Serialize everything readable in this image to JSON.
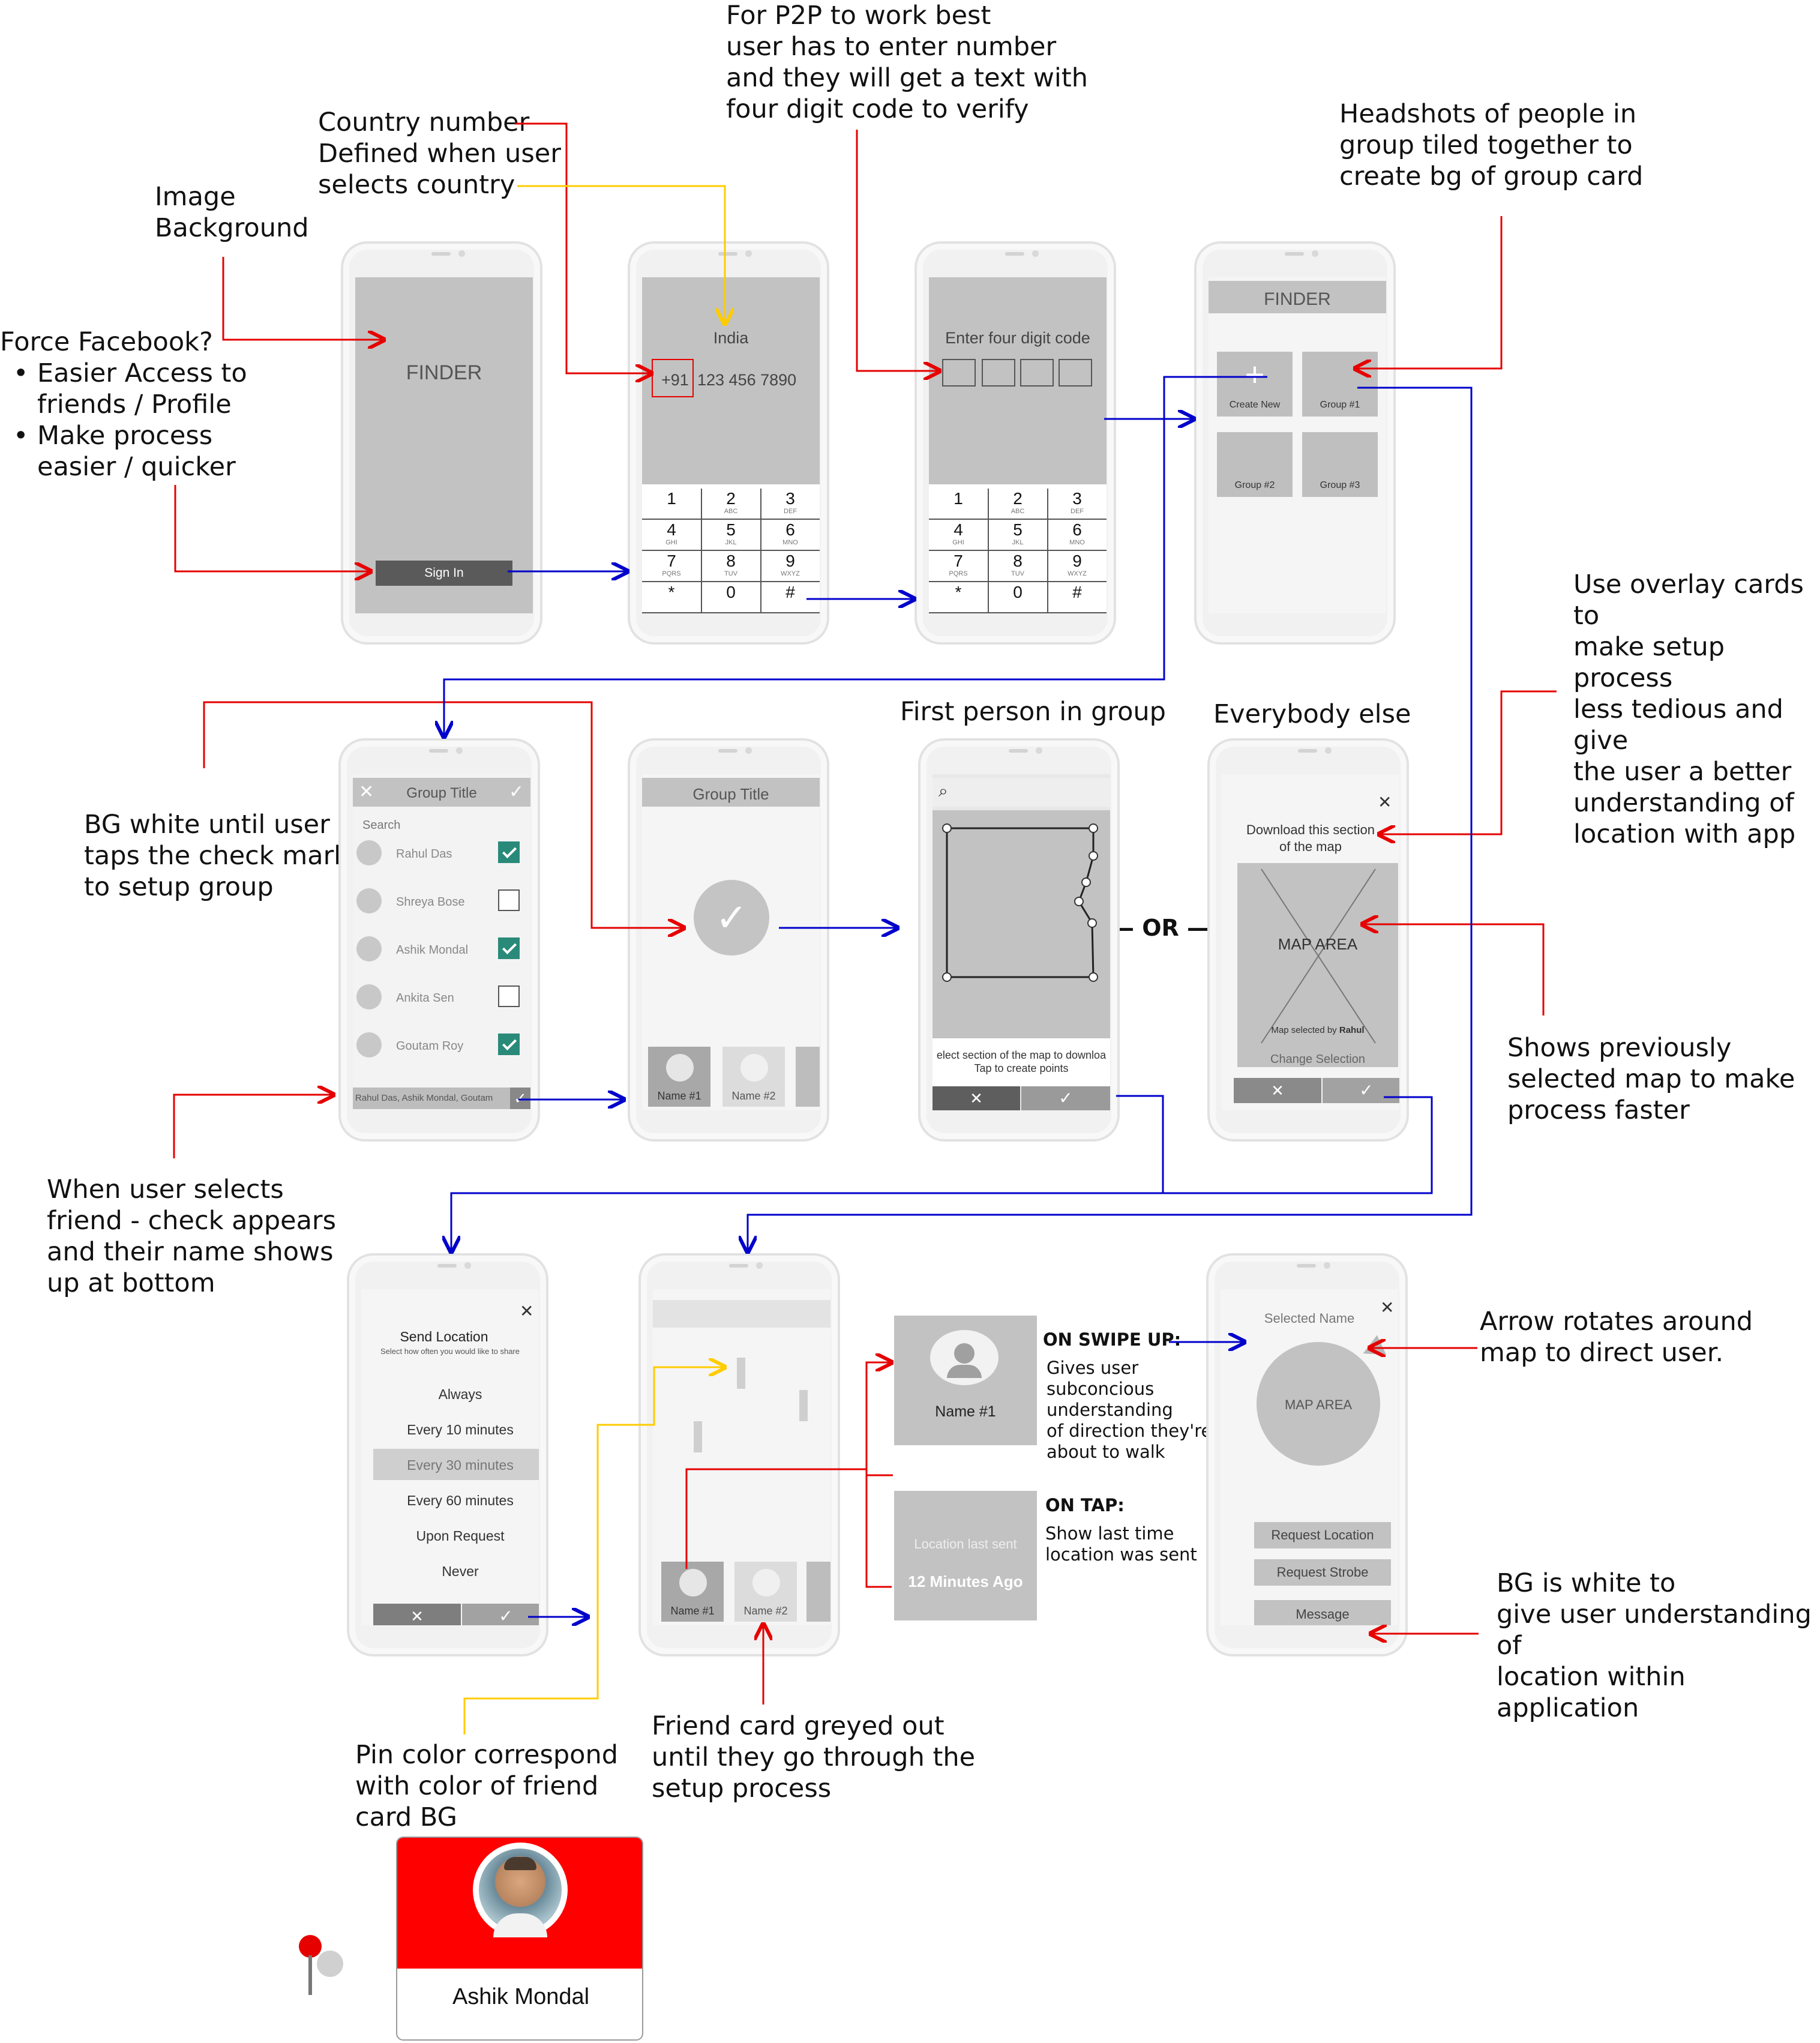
{
  "annotations": {
    "p2p": "For P2P to work best\nuser has to enter number\nand they will get a text with\nfour digit code to verify",
    "country": "Country number\nDefined when user\nselects country",
    "image_bg": "Image\nBackground",
    "headshots": "Headshots of people in\ngroup tiled together to\ncreate bg of group card",
    "force_fb_title": "Force Facebook?",
    "force_fb_b1": "Easier Access to\nfriends / Profile",
    "force_fb_b2": "Make process\neasier / quicker",
    "overlay": "Use overlay cards to\nmake setup process\nless tedious and give\nthe user a better\nunderstanding of\nlocation with app",
    "first_person": "First person in group",
    "everybody": "Everybody else",
    "bg_white": "BG white until user\ntaps the check mark\nto setup group",
    "or": "OR",
    "shows_prev": "Shows previously\nselected map to make\nprocess faster",
    "when_selects": "When user selects\nfriend - check appears\nand their name shows\nup at bottom",
    "arrow_rotates": "Arrow rotates around\nmap to direct user.",
    "bg_white2": "BG is white to\ngive user understanding of\nlocation within application",
    "pin_color": "Pin color correspond\nwith color of friend\ncard BG",
    "friend_greyed": "Friend card greyed out\nuntil they go through the\nsetup process",
    "swipe_title": "ON SWIPE UP:",
    "swipe_body": "Gives user\nsubconcious\nunderstanding\nof direction they're\nabout to walk",
    "tap_title": "ON TAP:",
    "tap_body": "Show last time\nlocation was sent"
  },
  "screens": {
    "login": {
      "title": "FINDER",
      "sign_in": "Sign In"
    },
    "phone": {
      "country": "India",
      "code": "+91",
      "number": "123 456 7890"
    },
    "verify": {
      "prompt": "Enter four digit code"
    },
    "keypad": [
      {
        "n": "1",
        "l": ""
      },
      {
        "n": "2",
        "l": "ABC"
      },
      {
        "n": "3",
        "l": "DEF"
      },
      {
        "n": "4",
        "l": "GHI"
      },
      {
        "n": "5",
        "l": "JKL"
      },
      {
        "n": "6",
        "l": "MNO"
      },
      {
        "n": "7",
        "l": "PQRS"
      },
      {
        "n": "8",
        "l": "TUV"
      },
      {
        "n": "9",
        "l": "WXYZ"
      },
      {
        "n": "*",
        "l": ""
      },
      {
        "n": "0",
        "l": ""
      },
      {
        "n": "#",
        "l": ""
      }
    ],
    "home": {
      "title": "FINDER",
      "create_new": "Create New",
      "groups": [
        "Group #1",
        "Group #2",
        "Group #3"
      ]
    },
    "group_setup": {
      "title": "Group Title",
      "search": "Search",
      "friends": [
        {
          "name": "Rahul Das",
          "checked": true
        },
        {
          "name": "Shreya Bose",
          "checked": false
        },
        {
          "name": "Ashik Mondal",
          "checked": true
        },
        {
          "name": "Ankita Sen",
          "checked": false
        },
        {
          "name": "Goutam Roy",
          "checked": true
        }
      ],
      "selected_names": "Rahul Das, Ashik Mondal, Goutam"
    },
    "group_done": {
      "title": "Group Title",
      "names": [
        "Name #1",
        "Name #2"
      ]
    },
    "map_select": {
      "hint1": "elect section of the map to downloa",
      "hint2": "Tap to create points"
    },
    "download": {
      "title1": "Download this section",
      "title2": "of the map",
      "map_area": "MAP AREA",
      "selected_by": "Map selected by ",
      "selected_by_name": "Rahul",
      "change": "Change Selection"
    },
    "send_location": {
      "title": "Send Location",
      "subtitle": "Select how often you would like to share",
      "options": [
        "Always",
        "Every 10 minutes",
        "Every 30 minutes",
        "Every 60 minutes",
        "Upon Request",
        "Never"
      ],
      "selected": "Every 30 minutes"
    },
    "map_view": {
      "names": [
        "Name #1",
        "Name #2"
      ]
    },
    "friend_card": {
      "name": "Name #1",
      "last_sent_label": "Location last sent",
      "last_sent_value": "12 Minutes Ago"
    },
    "friend_detail": {
      "selected_name": "Selected Name",
      "map_area": "MAP AREA",
      "actions": [
        "Request Location",
        "Request Strobe",
        "Message"
      ]
    },
    "profile_card": {
      "name": "Ashik Mondal",
      "color": "#ff0000"
    }
  },
  "colors": {
    "red": "#e60000",
    "blue": "#0000cc",
    "yellow": "#ffcc00",
    "teal": "#2a8a7a"
  }
}
